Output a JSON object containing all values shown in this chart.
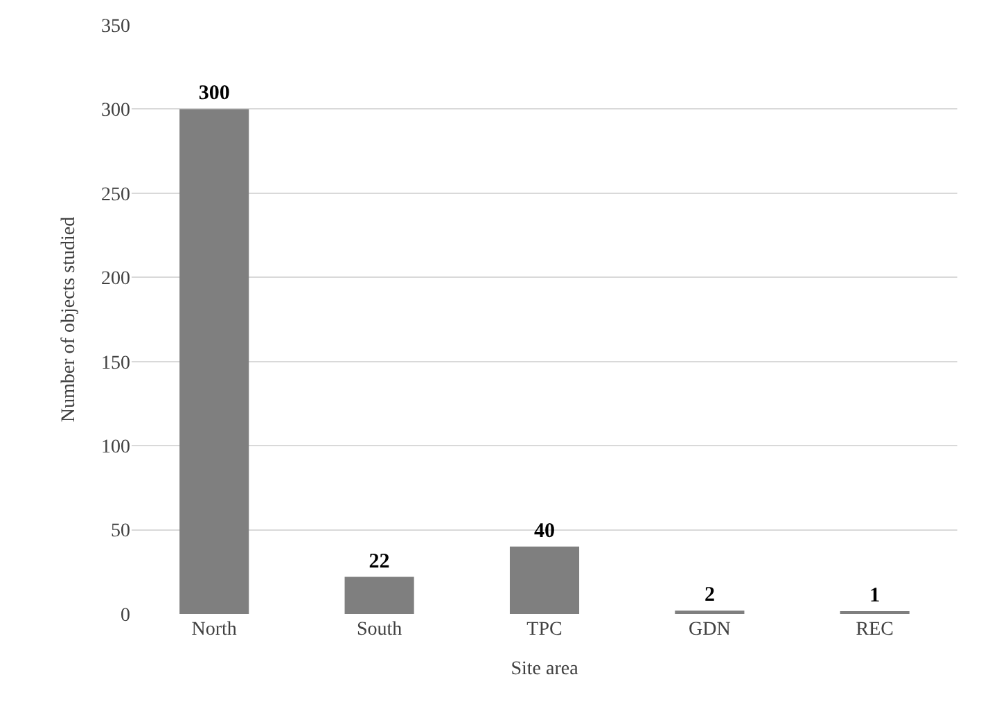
{
  "chart_data": {
    "type": "bar",
    "xlabel": "Site area",
    "ylabel": "Number of objects studied",
    "categories": [
      "North",
      "South",
      "TPC",
      "GDN",
      "REC"
    ],
    "values": [
      300,
      22,
      40,
      2,
      1
    ],
    "color": "#7f7f7f",
    "ylim": [
      0,
      350
    ],
    "yticks": [
      0,
      50,
      100,
      150,
      200,
      250,
      300,
      350
    ],
    "grid": "y",
    "data_labels": true
  }
}
